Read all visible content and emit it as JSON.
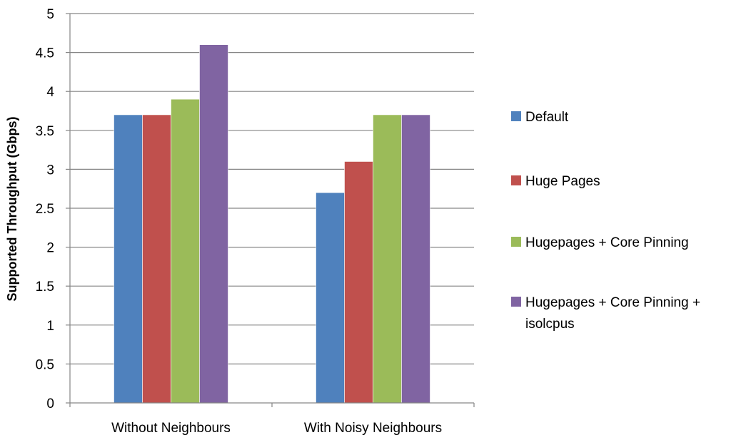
{
  "chart_data": {
    "type": "bar",
    "title": "",
    "xlabel": "",
    "ylabel": "Supported Throughput (Gbps)",
    "ylim": [
      0,
      5
    ],
    "yticks": [
      "0",
      "0.5",
      "1",
      "1.5",
      "2",
      "2.5",
      "3",
      "3.5",
      "4",
      "4.5",
      "5"
    ],
    "grid": true,
    "legend_position": "right",
    "categories": [
      "Without Neighbours",
      "With Noisy Neighbours"
    ],
    "series": [
      {
        "name": "Default",
        "color": "#4f81bd",
        "values": [
          3.7,
          2.7
        ]
      },
      {
        "name": "Huge Pages",
        "color": "#c0504d",
        "values": [
          3.7,
          3.1
        ]
      },
      {
        "name": "Hugepages + Core Pinning",
        "color": "#9bbb59",
        "values": [
          3.9,
          3.7
        ]
      },
      {
        "name": "Hugepages + Core Pinning + isolcpus",
        "color": "#8064a2",
        "values": [
          4.6,
          3.7
        ]
      }
    ]
  }
}
